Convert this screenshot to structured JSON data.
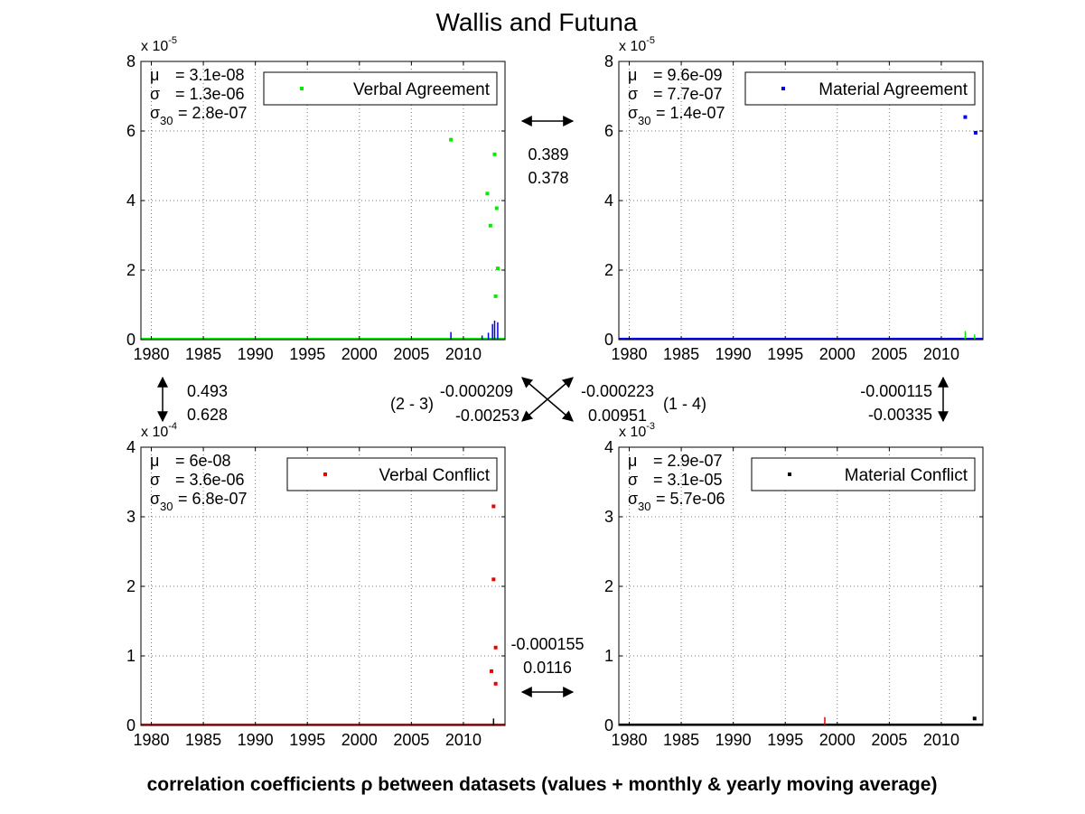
{
  "title": "Wallis and Futuna",
  "footer": "correlation coefficients ρ between datasets (values + monthly & yearly moving average)",
  "colors": {
    "green": "#00ee00",
    "blue": "#0000ee",
    "red": "#ee0000",
    "black": "#000000"
  },
  "chart_data": [
    {
      "type": "scatter",
      "legend": "Verbal Agreement",
      "color": "#00ee00",
      "exponent_label": "x 10",
      "exponent": "-5",
      "ylim": [
        0,
        8
      ],
      "yticks": [
        "0",
        "2",
        "4",
        "6",
        "8"
      ],
      "xlim": [
        1979,
        2014
      ],
      "xticks": [
        "1980",
        "1985",
        "1990",
        "1995",
        "2000",
        "2005",
        "2010"
      ],
      "stats": {
        "mu_label": "μ",
        "mu": "= 3.1e-08",
        "sigma_label": "σ",
        "sigma": "= 1.3e-06",
        "sigma30_label": "σ",
        "sigma30_sub": "30",
        "sigma30": "= 2.8e-07"
      },
      "points": [
        [
          2008.8,
          5.75
        ],
        [
          2012.3,
          4.2
        ],
        [
          2012.6,
          3.28
        ],
        [
          2013.0,
          5.33
        ],
        [
          2013.2,
          3.78
        ],
        [
          2013.3,
          2.05
        ],
        [
          2013.1,
          1.25
        ]
      ],
      "spikes": [
        [
          2008.8,
          0.22,
          "#0000ee"
        ],
        [
          2011.8,
          0.12,
          "#0000ee"
        ],
        [
          2012.4,
          0.2,
          "#0000ee"
        ],
        [
          2012.8,
          0.45,
          "#0000ee"
        ],
        [
          2013.0,
          0.55,
          "#0000ee"
        ],
        [
          2013.3,
          0.5,
          "#0000ee"
        ]
      ]
    },
    {
      "type": "scatter",
      "legend": "Material Agreement",
      "color": "#0000ee",
      "exponent_label": "x 10",
      "exponent": "-5",
      "ylim": [
        0,
        8
      ],
      "yticks": [
        "0",
        "2",
        "4",
        "6",
        "8"
      ],
      "xlim": [
        1979,
        2014
      ],
      "xticks": [
        "1980",
        "1985",
        "1990",
        "1995",
        "2000",
        "2005",
        "2010"
      ],
      "stats": {
        "mu_label": "μ",
        "mu": "= 9.6e-09",
        "sigma_label": "σ",
        "sigma": "= 7.7e-07",
        "sigma30_label": "σ",
        "sigma30_sub": "30",
        "sigma30": "= 1.4e-07"
      },
      "points": [
        [
          2012.3,
          6.4
        ],
        [
          2013.3,
          5.95
        ]
      ],
      "spikes": [
        [
          2012.3,
          0.25,
          "#00ee00"
        ],
        [
          2013.2,
          0.15,
          "#00ee00"
        ]
      ]
    },
    {
      "type": "scatter",
      "legend": "Verbal Conflict",
      "color": "#ee0000",
      "exponent_label": "x 10",
      "exponent": "-4",
      "ylim": [
        0,
        4
      ],
      "yticks": [
        "0",
        "1",
        "2",
        "3",
        "4"
      ],
      "xlim": [
        1979,
        2014
      ],
      "xticks": [
        "1980",
        "1985",
        "1990",
        "1995",
        "2000",
        "2005",
        "2010"
      ],
      "stats": {
        "mu_label": "μ",
        "mu": "= 6e-08",
        "sigma_label": "σ",
        "sigma": "= 3.6e-06",
        "sigma30_label": "σ",
        "sigma30_sub": "30",
        "sigma30": "= 6.8e-07"
      },
      "points": [
        [
          2012.9,
          3.15
        ],
        [
          2012.9,
          2.1
        ],
        [
          2013.1,
          1.12
        ],
        [
          2012.7,
          0.78
        ],
        [
          2013.1,
          0.6
        ]
      ],
      "spikes": [
        [
          2012.9,
          0.1,
          "#000000"
        ]
      ]
    },
    {
      "type": "scatter",
      "legend": "Material Conflict",
      "color": "#000000",
      "exponent_label": "x 10",
      "exponent": "-3",
      "ylim": [
        0,
        4
      ],
      "yticks": [
        "0",
        "1",
        "2",
        "3",
        "4"
      ],
      "xlim": [
        1979,
        2014
      ],
      "xticks": [
        "1980",
        "1985",
        "1990",
        "1995",
        "2000",
        "2005",
        "2010"
      ],
      "stats": {
        "mu_label": "μ",
        "mu": "= 2.9e-07",
        "sigma_label": "σ",
        "sigma": "= 3.1e-05",
        "sigma30_label": "σ",
        "sigma30_sub": "30",
        "sigma30": "= 5.7e-06"
      },
      "points": [
        [
          2013.2,
          0.1
        ]
      ],
      "spikes": [
        [
          1998.8,
          0.12,
          "#ee0000"
        ]
      ]
    }
  ],
  "correlations": {
    "top": [
      "0.389",
      "0.378"
    ],
    "bottom": [
      "-0.000155",
      "0.0116"
    ],
    "left": [
      "0.493",
      "0.628"
    ],
    "right": [
      "-0.000115",
      "-0.00335"
    ],
    "diag_left": [
      "-0.000209",
      "-0.00253"
    ],
    "diag_right": [
      "-0.000223",
      "0.00951"
    ],
    "diag_left_label": "(2 - 3)",
    "diag_right_label": "(1 - 4)"
  }
}
